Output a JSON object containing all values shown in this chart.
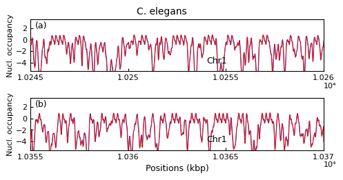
{
  "title": "C. elegans",
  "xlabel": "Positions (kbp)",
  "ylabel": "Nucl. occupancy",
  "panel_a": {
    "label": "(a)",
    "chr_label": "Chr1",
    "xmin": 10245,
    "xmax": 10260,
    "xticks": [
      10245,
      10250,
      10255,
      10260
    ],
    "xtick_labels": [
      "1.0245",
      "1.025",
      "1.0255",
      "1.026"
    ],
    "exponent_label": "10⁴",
    "ylim": [
      -5.5,
      3.5
    ],
    "yticks": [
      -4,
      -2,
      0,
      2
    ]
  },
  "panel_b": {
    "label": "(b)",
    "chr_label": "Chr1",
    "xmin": 10355,
    "xmax": 10370,
    "xticks": [
      10355,
      10360,
      10365,
      10370
    ],
    "xtick_labels": [
      "1.0355",
      "1.036",
      "1.0365",
      "1.037"
    ],
    "exponent_label": "10⁴",
    "ylim": [
      -5.5,
      3.5
    ],
    "yticks": [
      -4,
      -2,
      0,
      2
    ]
  },
  "blue_color": "#3333bb",
  "red_color": "#dd1111",
  "linewidth": 0.7,
  "title_fontsize": 10,
  "axis_fontsize": 8,
  "tick_fontsize": 8,
  "label_fontsize": 9,
  "chr_fontsize": 9
}
